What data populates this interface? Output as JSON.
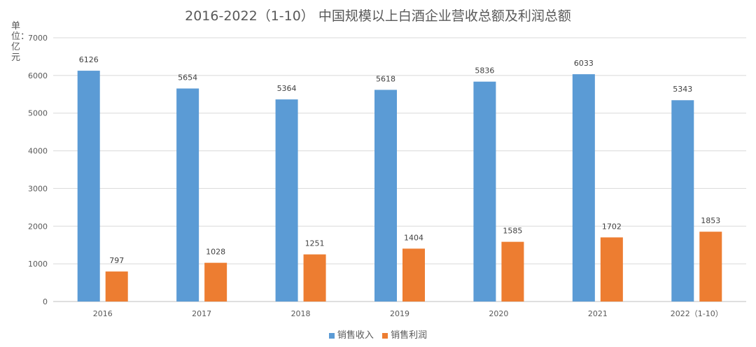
{
  "chart_data": {
    "type": "bar",
    "title": "2016-2022（1-10） 中国规模以上白酒企业营收总额及利润总额",
    "ylabel": "单位：亿元",
    "xlabel": "",
    "categories": [
      "2016",
      "2017",
      "2018",
      "2019",
      "2020",
      "2021",
      "2022（1-10）"
    ],
    "series": [
      {
        "name": "销售收入",
        "color": "#5B9BD5",
        "values": [
          6126,
          5654,
          5364,
          5618,
          5836,
          6033,
          5343
        ]
      },
      {
        "name": "销售利润",
        "color": "#ED7D31",
        "values": [
          797,
          1028,
          1251,
          1404,
          1585,
          1702,
          1853
        ]
      }
    ],
    "ylim": [
      0,
      7000
    ],
    "yticks": [
      0,
      1000,
      2000,
      3000,
      4000,
      5000,
      6000,
      7000
    ],
    "grid": true,
    "legend": "bottom-center"
  }
}
